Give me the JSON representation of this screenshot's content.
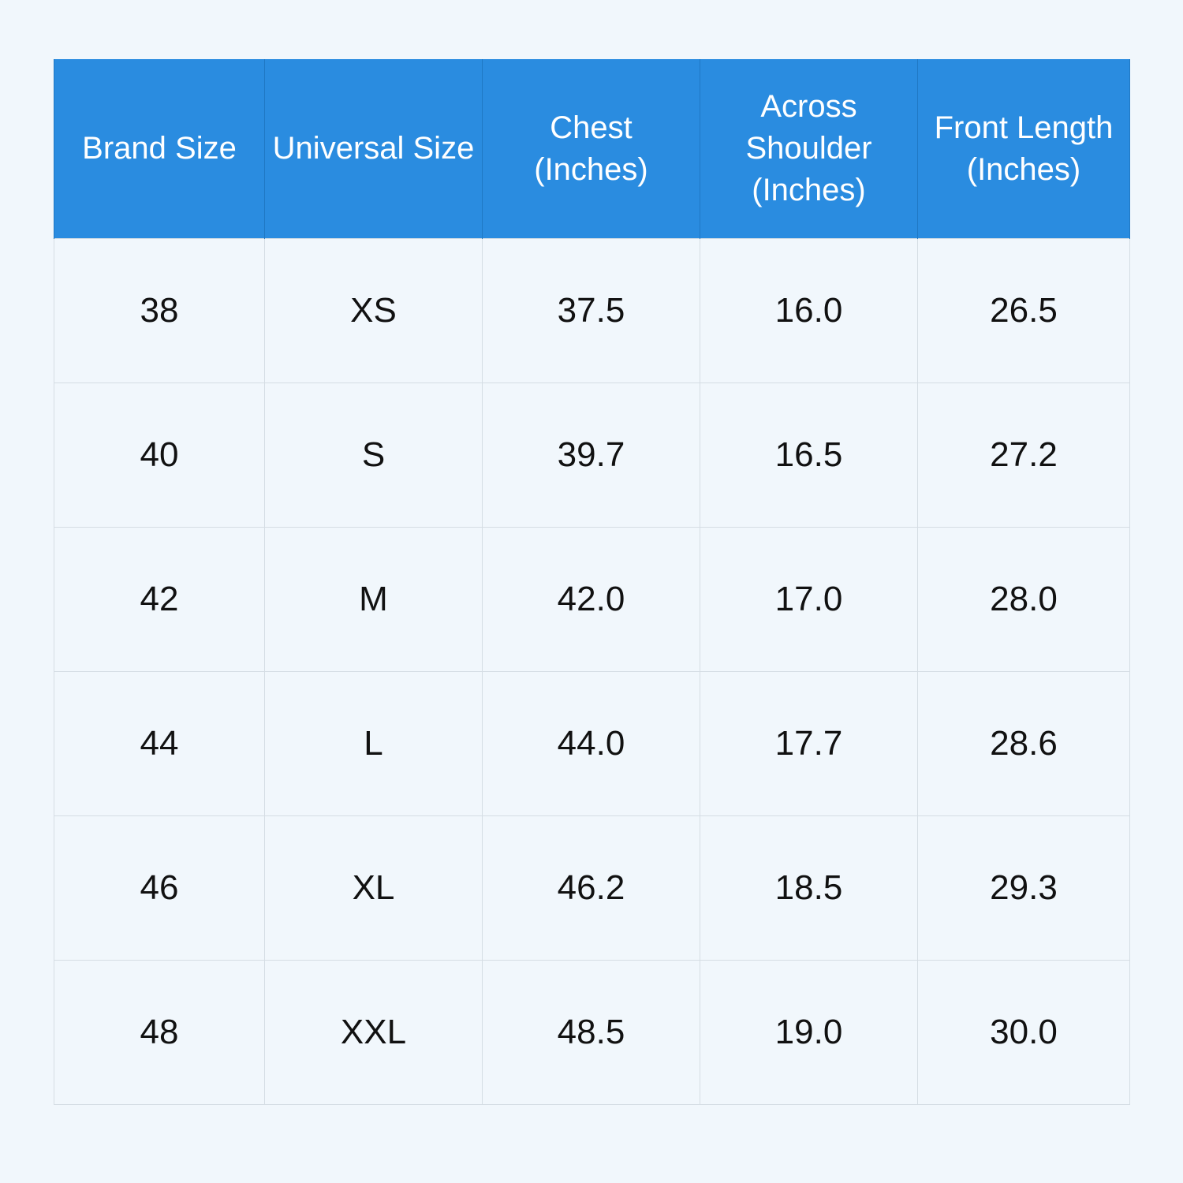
{
  "table": {
    "header": [
      [
        "Brand Size"
      ],
      [
        "Universal Size"
      ],
      [
        "Chest",
        "(Inches)"
      ],
      [
        "Across",
        "Shoulder",
        "(Inches)"
      ],
      [
        "Front Length",
        "(Inches)"
      ]
    ],
    "rows": [
      [
        "38",
        "XS",
        "37.5",
        "16.0",
        "26.5"
      ],
      [
        "40",
        "S",
        "39.7",
        "16.5",
        "27.2"
      ],
      [
        "42",
        "M",
        "42.0",
        "17.0",
        "28.0"
      ],
      [
        "44",
        "L",
        "44.0",
        "17.7",
        "28.6"
      ],
      [
        "46",
        "XL",
        "46.2",
        "18.5",
        "29.3"
      ],
      [
        "48",
        "XXL",
        "48.5",
        "19.0",
        "30.0"
      ]
    ]
  }
}
